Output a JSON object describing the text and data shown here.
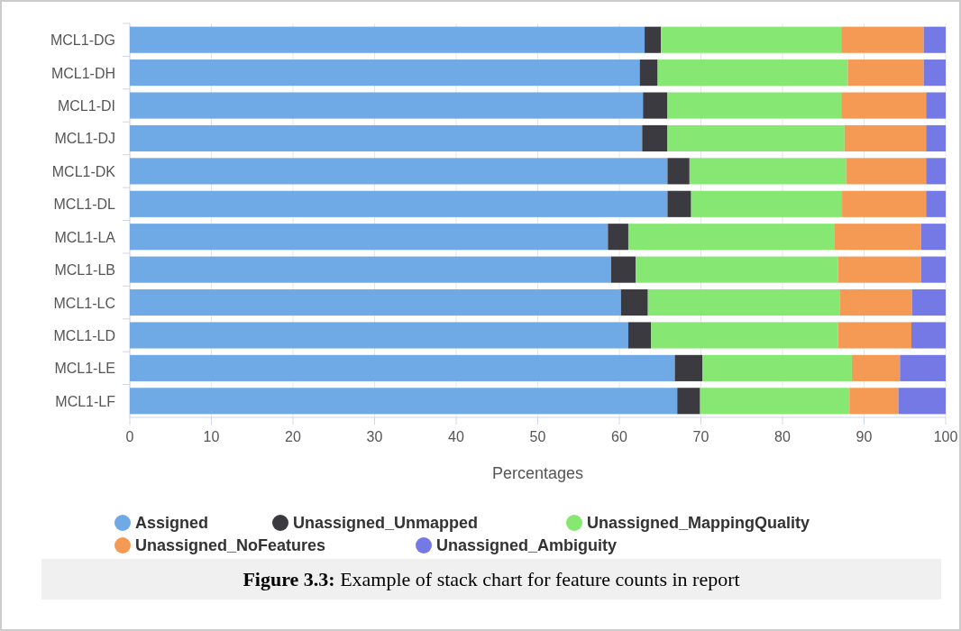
{
  "chart_data": {
    "type": "bar",
    "orientation": "horizontal",
    "stacked": true,
    "xlabel": "Percentages",
    "categories": [
      "MCL1-DG",
      "MCL1-DH",
      "MCL1-DI",
      "MCL1-DJ",
      "MCL1-DK",
      "MCL1-DL",
      "MCL1-LA",
      "MCL1-LB",
      "MCL1-LC",
      "MCL1-LD",
      "MCL1-LE",
      "MCL1-LF"
    ],
    "series": [
      {
        "name": "Assigned",
        "color": "#6fa9e6",
        "values": [
          63.1,
          62.5,
          62.9,
          62.8,
          65.9,
          65.9,
          58.6,
          59.0,
          60.2,
          61.1,
          66.8,
          67.1
        ]
      },
      {
        "name": "Unassigned_Unmapped",
        "color": "#3a3a40",
        "values": [
          2.0,
          2.2,
          3.0,
          3.1,
          2.7,
          2.9,
          2.5,
          3.0,
          3.3,
          2.8,
          3.4,
          2.8
        ]
      },
      {
        "name": "Unassigned_MappingQuality",
        "color": "#86e872",
        "values": [
          22.1,
          23.3,
          21.3,
          21.7,
          19.2,
          18.5,
          25.3,
          24.8,
          23.5,
          22.9,
          18.3,
          18.3
        ]
      },
      {
        "name": "Unassigned_NoFeatures",
        "color": "#f59a54",
        "values": [
          10.1,
          9.3,
          10.4,
          10.0,
          9.8,
          10.3,
          10.6,
          10.2,
          8.9,
          9.0,
          5.9,
          6.0
        ]
      },
      {
        "name": "Unassigned_Ambiguity",
        "color": "#7479e6",
        "values": [
          2.7,
          2.7,
          2.4,
          2.4,
          2.4,
          2.4,
          3.0,
          3.0,
          4.1,
          4.2,
          5.6,
          5.8
        ]
      }
    ],
    "xlim": [
      0,
      100
    ],
    "xticks": [
      0,
      10,
      20,
      30,
      40,
      50,
      60,
      70,
      80,
      90,
      100
    ],
    "grid": "x",
    "legend": "bottom",
    "annotations": [
      "Figure 3.3:",
      "Example of stack chart for feature counts in report"
    ]
  }
}
